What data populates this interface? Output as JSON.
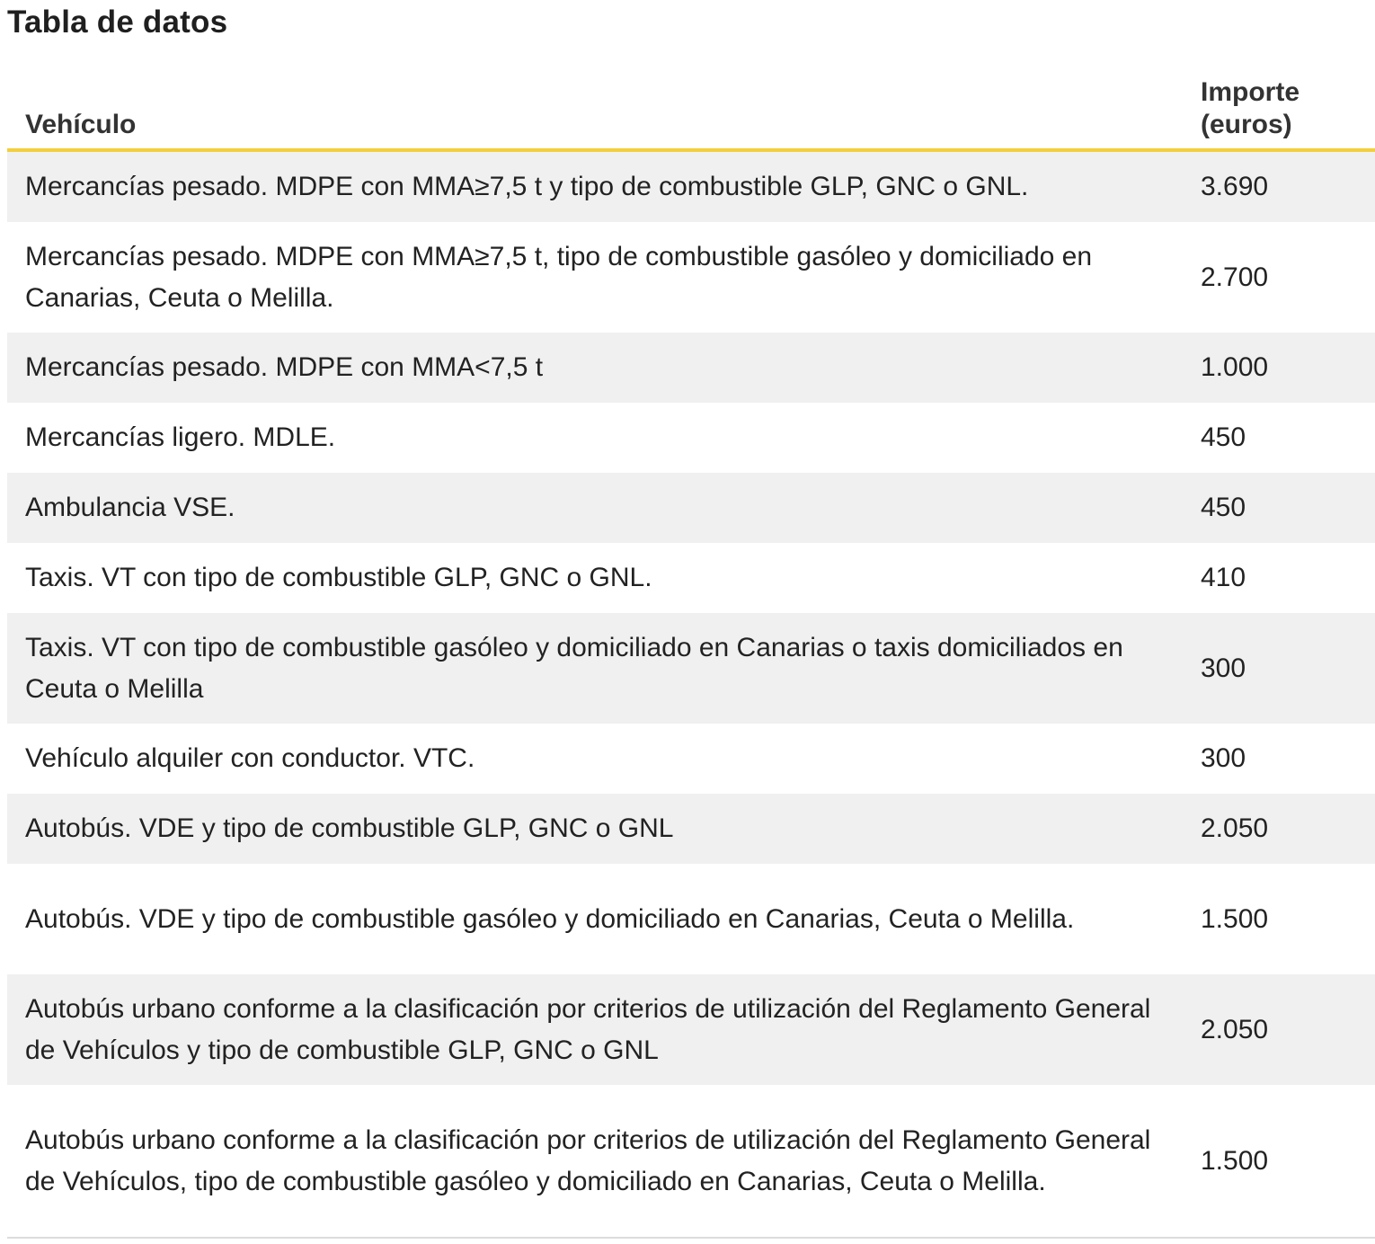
{
  "title": "Tabla de datos",
  "table": {
    "headers": {
      "vehicle": "Vehículo",
      "amount": "Importe (euros)"
    },
    "rows": [
      {
        "vehicle": "Mercancías pesado. MDPE con MMA≥7,5 t y tipo de combustible GLP, GNC o GNL.",
        "amount": "3.690"
      },
      {
        "vehicle": "Mercancías pesado. MDPE con MMA≥7,5 t, tipo de combustible gasóleo y domiciliado en Canarias, Ceuta o Melilla.",
        "amount": "2.700"
      },
      {
        "vehicle": "Mercancías pesado. MDPE con MMA<7,5 t",
        "amount": "1.000"
      },
      {
        "vehicle": "Mercancías ligero. MDLE.",
        "amount": "450"
      },
      {
        "vehicle": "Ambulancia VSE.",
        "amount": "450"
      },
      {
        "vehicle": "Taxis. VT con tipo de combustible GLP, GNC o GNL.",
        "amount": "410"
      },
      {
        "vehicle": "Taxis. VT con tipo de combustible gasóleo y domiciliado en Canarias o taxis domiciliados en Ceuta o Melilla",
        "amount": "300"
      },
      {
        "vehicle": "Vehículo alquiler con conductor. VTC.",
        "amount": "300"
      },
      {
        "vehicle": "Autobús. VDE y tipo de combustible GLP, GNC o GNL",
        "amount": "2.050"
      },
      {
        "vehicle": "Autobús. VDE y tipo de combustible gasóleo y domiciliado en Canarias, Ceuta o Melilla.",
        "amount": "1.500"
      },
      {
        "vehicle": "Autobús urbano conforme a la clasificación por criterios de utilización del Reglamento General de Vehículos y tipo de combustible GLP, GNC o GNL",
        "amount": "2.050"
      },
      {
        "vehicle": "Autobús urbano conforme a la clasificación por criterios de utilización del Reglamento General de Vehículos, tipo de combustible gasóleo y domiciliado en Canarias, Ceuta o Melilla.",
        "amount": "1.500"
      }
    ]
  }
}
